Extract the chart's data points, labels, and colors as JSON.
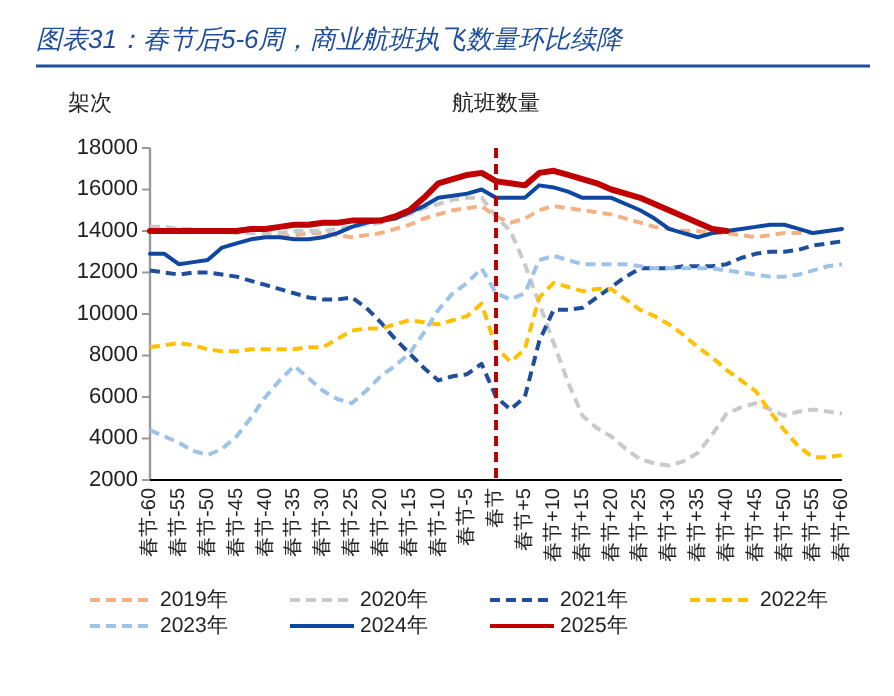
{
  "chart_data": {
    "type": "line",
    "title": "图表31：春节后5-6周，商业航班执飞数量环比续降",
    "subtitle": "航班数量",
    "ylabel": "架次",
    "categories": [
      "春节-60",
      null,
      "春节-55",
      null,
      "春节-50",
      null,
      "春节-45",
      null,
      "春节-40",
      null,
      "春节-35",
      null,
      "春节-30",
      null,
      "春节-25",
      null,
      "春节-20",
      null,
      "春节-15",
      null,
      "春节-10",
      null,
      "春节-5",
      null,
      "春节",
      null,
      "春节+5",
      null,
      "春节+10",
      null,
      "春节+15",
      null,
      "春节+20",
      null,
      "春节+25",
      null,
      "春节+30",
      null,
      "春节+35",
      null,
      "春节+40",
      null,
      "春节+45",
      null,
      "春节+50",
      null,
      "春节+55",
      null,
      "春节+60"
    ],
    "ylim": [
      2000,
      18000
    ],
    "yticks": [
      2000,
      4000,
      6000,
      8000,
      10000,
      12000,
      14000,
      16000,
      18000
    ],
    "legend": "bottom",
    "ref_lines": [
      {
        "axis": "x",
        "value": "春节",
        "color": "#c00000",
        "line_style": "dashed"
      }
    ],
    "series": [
      {
        "name": "2019年",
        "color": "#f4b183",
        "line_style": "dashed",
        "values": [
          null,
          null,
          null,
          null,
          null,
          null,
          null,
          null,
          null,
          13700,
          13800,
          13900,
          13900,
          13800,
          13700,
          13800,
          13900,
          14100,
          14300,
          14600,
          14800,
          15000,
          15100,
          15200,
          14700,
          14400,
          14600,
          15000,
          15200,
          15100,
          15000,
          14900,
          14800,
          14600,
          14400,
          14200,
          14100,
          14000,
          14000,
          13900,
          13900,
          13800,
          13700,
          13800,
          13900,
          13900,
          13900,
          null,
          null
        ]
      },
      {
        "name": "2020年",
        "color": "#c9c9c9",
        "line_style": "dashed",
        "values": [
          14200,
          14200,
          14100,
          14100,
          14000,
          14000,
          13900,
          13900,
          13900,
          13900,
          14000,
          14000,
          14000,
          14100,
          14200,
          14300,
          14400,
          14600,
          14800,
          15100,
          15300,
          15500,
          15600,
          15600,
          14700,
          14000,
          12400,
          10500,
          8600,
          6700,
          5100,
          4500,
          4100,
          3500,
          3000,
          2800,
          2700,
          2900,
          3300,
          4200,
          5200,
          5500,
          5700,
          5400,
          5100,
          5300,
          5400,
          5300,
          5200
        ]
      },
      {
        "name": "2021年",
        "color": "#1f4e9c",
        "line_style": "dashed",
        "values": [
          12100,
          12000,
          11900,
          12000,
          12000,
          11900,
          11800,
          11600,
          11400,
          11200,
          11000,
          10800,
          10700,
          10700,
          10800,
          10300,
          9600,
          8800,
          8100,
          7400,
          6800,
          7000,
          7100,
          7600,
          6000,
          5400,
          6000,
          8700,
          10200,
          10200,
          10300,
          10800,
          11300,
          11800,
          12200,
          12200,
          12200,
          12300,
          12300,
          12300,
          12400,
          12700,
          12900,
          13000,
          13000,
          13100,
          13300,
          13400,
          13500
        ]
      },
      {
        "name": "2022年",
        "color": "#ffc000",
        "line_style": "dashed",
        "values": [
          8400,
          8500,
          8600,
          8500,
          8300,
          8200,
          8200,
          8300,
          8300,
          8300,
          8300,
          8400,
          8400,
          8800,
          9200,
          9300,
          9300,
          9500,
          9700,
          9600,
          9500,
          9700,
          9900,
          10500,
          8400,
          7700,
          8300,
          10800,
          11500,
          11300,
          11100,
          11200,
          11200,
          10700,
          10200,
          9900,
          9500,
          9000,
          8400,
          7900,
          7300,
          6800,
          6300,
          5300,
          4400,
          3600,
          3100,
          3100,
          3200
        ]
      },
      {
        "name": "2023年",
        "color": "#9dc3e6",
        "line_style": "dashed",
        "values": [
          4400,
          4100,
          3800,
          3400,
          3200,
          3500,
          4100,
          5000,
          6000,
          6800,
          7500,
          6900,
          6300,
          5900,
          5700,
          6300,
          7000,
          7500,
          8100,
          9100,
          10200,
          11000,
          11500,
          12200,
          11000,
          10700,
          11000,
          12600,
          12800,
          12600,
          12400,
          12400,
          12400,
          12400,
          12300,
          12200,
          12200,
          12200,
          12200,
          12200,
          12100,
          12000,
          11900,
          11800,
          11800,
          11900,
          12100,
          12300,
          12400
        ]
      },
      {
        "name": "2024年",
        "color": "#0d47a1",
        "line_style": "solid",
        "values": [
          12900,
          12900,
          12400,
          12500,
          12600,
          13200,
          13400,
          13600,
          13700,
          13700,
          13600,
          13600,
          13700,
          13900,
          14200,
          14400,
          14500,
          14600,
          14900,
          15200,
          15600,
          15700,
          15800,
          16000,
          15600,
          15600,
          15600,
          16200,
          16100,
          15900,
          15600,
          15600,
          15600,
          15300,
          15000,
          14600,
          14100,
          13900,
          13700,
          13900,
          14000,
          14100,
          14200,
          14300,
          14300,
          14100,
          13900,
          14000,
          14100
        ]
      },
      {
        "name": "2025年",
        "color": "#c00000",
        "line_style": "solid",
        "values": [
          14000,
          14000,
          14000,
          14000,
          14000,
          14000,
          14000,
          14100,
          14100,
          14200,
          14300,
          14300,
          14400,
          14400,
          14500,
          14500,
          14500,
          14700,
          15000,
          15600,
          16300,
          16500,
          16700,
          16800,
          16400,
          16300,
          16200,
          16800,
          16900,
          16700,
          16500,
          16300,
          16000,
          15800,
          15600,
          15300,
          15000,
          14700,
          14400,
          14100,
          14000,
          null,
          null,
          null,
          null,
          null,
          null,
          null,
          null
        ]
      }
    ]
  }
}
